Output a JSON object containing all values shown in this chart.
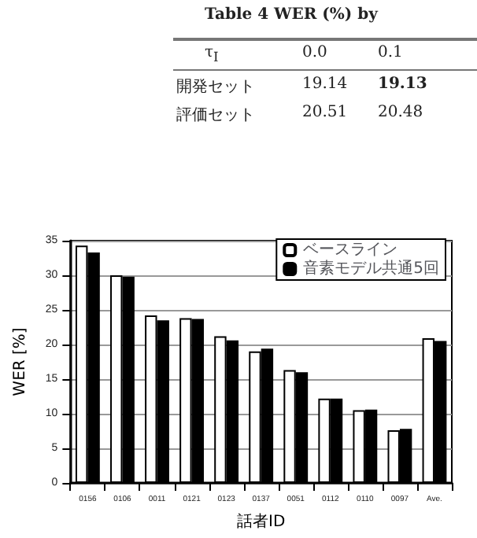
{
  "chart_data": {
    "type": "bar",
    "annotations": [
      "Table 4  WER (%) by",
      "τ$_{I}$",
      "0.0",
      "0.1",
      "開発セット",
      "19.14",
      "19.13",
      "評価セット",
      "20.51",
      "20.48"
    ],
    "xlabel": "話者ID",
    "ylabel": "WER [%]",
    "categories": [
      "0156",
      "0106",
      "0011",
      "0121",
      "0123",
      "0137",
      "0051",
      "0112",
      "0110",
      "0097",
      "Ave."
    ],
    "series": [
      {
        "name": "ベースライン",
        "color": "#ffffff",
        "values": [
          34.3,
          30.0,
          24.2,
          23.8,
          21.2,
          19.0,
          16.3,
          12.2,
          10.5,
          7.6,
          20.9
        ]
      },
      {
        "name": "音素モデル共通5回",
        "color": "#000000",
        "values": [
          33.3,
          29.8,
          23.5,
          23.7,
          20.6,
          19.4,
          16.0,
          12.2,
          10.6,
          7.8,
          20.5
        ]
      }
    ],
    "ylim": [
      0,
      35
    ],
    "yticks": [
      0,
      5,
      10,
      15,
      20,
      25,
      30,
      35
    ],
    "grid": "y",
    "legend": "top right"
  }
}
